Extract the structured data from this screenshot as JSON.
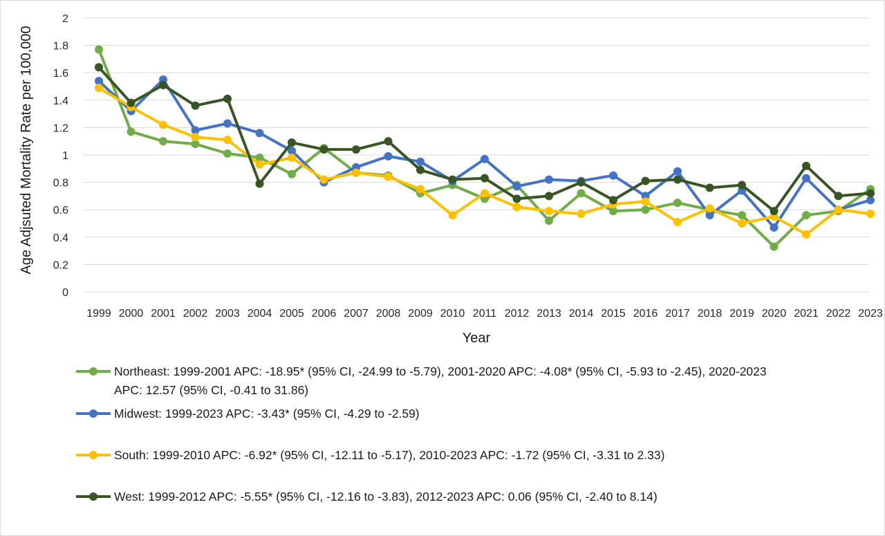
{
  "chart_data": {
    "type": "line",
    "title": "",
    "xlabel": "Year",
    "ylabel": "Age Adjsuted Mortality Rate per 100,000",
    "ylim": [
      0,
      2
    ],
    "yticks": [
      "0",
      "0.2",
      "0.4",
      "0.6",
      "0.8",
      "1",
      "1.2",
      "1.4",
      "1.6",
      "1.8",
      "2"
    ],
    "grid": "horizontal",
    "legend_position": "bottom",
    "x": [
      "1999",
      "2000",
      "2001",
      "2002",
      "2003",
      "2004",
      "2005",
      "2006",
      "2007",
      "2008",
      "2009",
      "2010",
      "2011",
      "2012",
      "2013",
      "2014",
      "2015",
      "2016",
      "2017",
      "2018",
      "2019",
      "2020",
      "2021",
      "2022",
      "2023"
    ],
    "series": [
      {
        "name": "Northeast: 1999-2001 APC: -18.95* (95% CI, -24.99 to -5.79), 2001-2020 APC: -4.08* (95% CI, -5.93 to -2.45), 2020-2023 APC: 12.57 (95% CI, -0.41 to 31.86)",
        "legend_lines": [
          "Northeast: 1999-2001 APC: -18.95* (95% CI, -24.99 to -5.79), 2001-2020 APC: -4.08* (95% CI, -5.93 to -2.45), 2020-2023",
          "APC: 12.57 (95% CI, -0.41 to 31.86)"
        ],
        "color": "#70ad47",
        "values": [
          1.77,
          1.17,
          1.1,
          1.08,
          1.01,
          0.98,
          0.86,
          1.05,
          0.87,
          0.85,
          0.72,
          0.78,
          0.68,
          0.78,
          0.52,
          0.72,
          0.59,
          0.6,
          0.65,
          0.6,
          0.56,
          0.33,
          0.56,
          0.59,
          0.75
        ]
      },
      {
        "name": "Midwest: 1999-2023 APC: -3.43* (95% CI, -4.29 to -2.59)",
        "legend_lines": [
          "Midwest: 1999-2023 APC: -3.43* (95% CI, -4.29 to -2.59)"
        ],
        "color": "#4472c4",
        "values": [
          1.54,
          1.32,
          1.55,
          1.18,
          1.23,
          1.16,
          1.03,
          0.8,
          0.91,
          0.99,
          0.95,
          0.81,
          0.97,
          0.77,
          0.82,
          0.81,
          0.85,
          0.7,
          0.88,
          0.56,
          0.74,
          0.47,
          0.83,
          0.6,
          0.67
        ]
      },
      {
        "name": "South: 1999-2010 APC: -6.92* (95% CI, -12.11 to -5.17), 2010-2023 APC: -1.72 (95% CI, -3.31 to 2.33)",
        "legend_lines": [
          "South: 1999-2010 APC: -6.92* (95% CI, -12.11 to -5.17), 2010-2023 APC: -1.72 (95% CI, -3.31 to 2.33)"
        ],
        "color": "#ffc000",
        "values": [
          1.49,
          1.35,
          1.22,
          1.13,
          1.11,
          0.93,
          0.98,
          0.82,
          0.87,
          0.84,
          0.75,
          0.56,
          0.72,
          0.62,
          0.59,
          0.57,
          0.64,
          0.66,
          0.51,
          0.61,
          0.5,
          0.55,
          0.42,
          0.6,
          0.57
        ]
      },
      {
        "name": "West: 1999-2012 APC: -5.55* (95% CI, -12.16 to -3.83), 2012-2023 APC: 0.06 (95% CI, -2.40 to 8.14)",
        "legend_lines": [
          "West: 1999-2012 APC: -5.55* (95% CI, -12.16 to -3.83), 2012-2023 APC: 0.06 (95% CI, -2.40 to 8.14)"
        ],
        "color": "#375623",
        "values": [
          1.64,
          1.38,
          1.51,
          1.36,
          1.41,
          0.79,
          1.09,
          1.04,
          1.04,
          1.1,
          0.89,
          0.82,
          0.83,
          0.68,
          0.7,
          0.8,
          0.67,
          0.81,
          0.82,
          0.76,
          0.78,
          0.59,
          0.92,
          0.7,
          0.72
        ]
      }
    ]
  }
}
